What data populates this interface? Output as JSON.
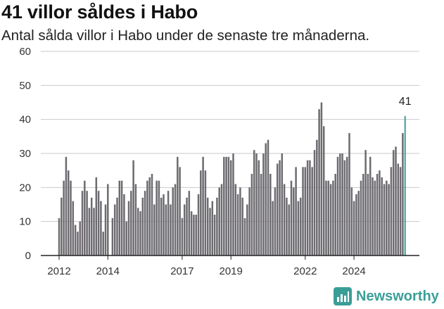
{
  "header": {
    "title": "41 villor såldes i Habo",
    "subtitle": "Antal sålda villor i Habo under de senaste tre månaderna."
  },
  "brand": {
    "name": "Newsworthy",
    "color": "#3a9e97"
  },
  "chart_data": {
    "type": "bar",
    "title": "41 villor såldes i Habo",
    "subtitle": "Antal sålda villor i Habo under de senaste tre månaderna.",
    "xlabel": "",
    "ylabel": "",
    "ylim": [
      0,
      60
    ],
    "yticks": [
      0,
      10,
      20,
      30,
      40,
      50,
      60
    ],
    "xticks": [
      {
        "label": "2012",
        "index": 0
      },
      {
        "label": "2014",
        "index": 21
      },
      {
        "label": "2017",
        "index": 53
      },
      {
        "label": "2019",
        "index": 74
      },
      {
        "label": "2022",
        "index": 106
      },
      {
        "label": "2024",
        "index": 127
      }
    ],
    "grid": true,
    "legend": "none",
    "bar_color": "#6d6b70",
    "highlight_color": "#3a9e97",
    "highlight_label": "41",
    "values": [
      11,
      17,
      22,
      29,
      25,
      22,
      16,
      9,
      7,
      10,
      19,
      22,
      19,
      14,
      17,
      14,
      23,
      19,
      16,
      7,
      15,
      21,
      0,
      11,
      15,
      17,
      22,
      22,
      18,
      10,
      16,
      19,
      28,
      21,
      14,
      13,
      17,
      19,
      22,
      23,
      24,
      15,
      22,
      22,
      17,
      18,
      15,
      19,
      15,
      20,
      21,
      29,
      26,
      11,
      15,
      17,
      19,
      13,
      12,
      12,
      18,
      25,
      29,
      25,
      17,
      14,
      16,
      12,
      17,
      20,
      21,
      29,
      29,
      29,
      28,
      30,
      21,
      18,
      20,
      17,
      11,
      15,
      20,
      24,
      31,
      30,
      28,
      24,
      30,
      33,
      34,
      24,
      16,
      20,
      27,
      28,
      30,
      21,
      17,
      15,
      22,
      20,
      26,
      16,
      17,
      26,
      26,
      28,
      28,
      26,
      31,
      34,
      43,
      45,
      38,
      22,
      22,
      21,
      22,
      24,
      29,
      30,
      30,
      28,
      29,
      36,
      20,
      16,
      18,
      19,
      22,
      24,
      31,
      24,
      29,
      23,
      22,
      24,
      25,
      23,
      21,
      22,
      21,
      26,
      31,
      32,
      27,
      26,
      36,
      41
    ]
  }
}
